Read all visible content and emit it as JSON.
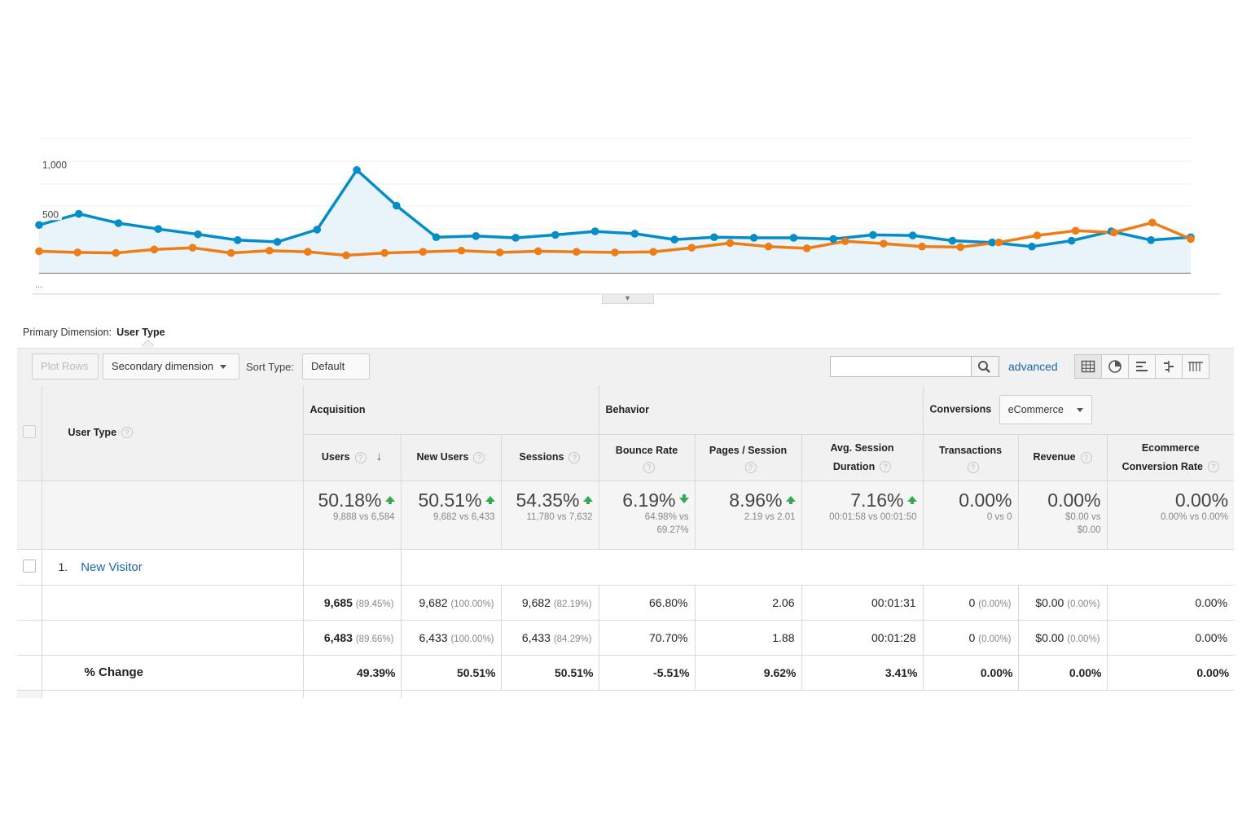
{
  "chart_data": {
    "type": "line",
    "ytick_labels": [
      "1,000",
      "500"
    ],
    "yticks": [
      1000,
      500
    ],
    "ylim": [
      0,
      1150
    ],
    "x_more_label": "...",
    "series": [
      {
        "color": "#058dc7",
        "fill": true,
        "values": [
          410,
          505,
          425,
          375,
          330,
          280,
          265,
          370,
          880,
          575,
          305,
          315,
          300,
          325,
          355,
          335,
          285,
          305,
          300,
          300,
          290,
          325,
          320,
          275,
          260,
          225,
          275,
          355,
          280,
          305
        ]
      },
      {
        "color": "#ed7e17",
        "fill": false,
        "values": [
          185,
          175,
          170,
          200,
          215,
          170,
          190,
          180,
          150,
          170,
          180,
          190,
          175,
          185,
          180,
          175,
          180,
          215,
          255,
          225,
          210,
          270,
          250,
          225,
          220,
          260,
          320,
          360,
          345,
          430,
          290
        ]
      }
    ]
  },
  "colors": {
    "blue": "#058dc7",
    "orange": "#ed7e17",
    "link": "#1a66b1",
    "green": "#34a853"
  },
  "primary_dimension": {
    "label": "Primary Dimension:",
    "value": "User Type"
  },
  "toolbar": {
    "plot_rows": "Plot Rows",
    "secondary_dimension": "Secondary dimension",
    "sort_type_label": "Sort Type:",
    "sort_type_value": "Default",
    "search_value": "",
    "advanced": "advanced",
    "view_icons": [
      "table-view-icon",
      "pie-view-icon",
      "bar-view-icon",
      "comparison-view-icon",
      "pivot-view-icon"
    ]
  },
  "table": {
    "dimension_header": "User Type",
    "groups": {
      "acquisition": "Acquisition",
      "behavior": "Behavior",
      "conversions": "Conversions",
      "conversions_select": "eCommerce"
    },
    "columns": {
      "users": "Users",
      "new_users": "New Users",
      "sessions": "Sessions",
      "bounce_rate": "Bounce Rate",
      "pages_session": "Pages / Session",
      "avg_session_1": "Avg. Session",
      "avg_session_2": "Duration",
      "transactions": "Transactions",
      "revenue": "Revenue",
      "ecom_1": "Ecommerce",
      "ecom_2": "Conversion Rate"
    },
    "summary": {
      "users": {
        "big": "50.18%",
        "small": "9,888 vs 6,584"
      },
      "new_users": {
        "big": "50.51%",
        "small": "9,682 vs 6,433"
      },
      "sessions": {
        "big": "54.35%",
        "small": "11,780 vs 7,632"
      },
      "bounce_rate": {
        "big": "6.19%",
        "small1": "64.98% vs",
        "small2": "69.27%"
      },
      "pages_session": {
        "big": "8.96%",
        "small": "2.19 vs 2.01"
      },
      "avg_session": {
        "big": "7.16%",
        "small": "00:01:58 vs 00:01:50"
      },
      "transactions": {
        "big": "0.00%",
        "small": "0 vs 0"
      },
      "revenue": {
        "big": "0.00%",
        "small1": "$0.00 vs",
        "small2": "$0.00"
      },
      "ecom": {
        "big": "0.00%",
        "small": "0.00% vs 0.00%"
      }
    },
    "row": {
      "index": "1.",
      "name": "New Visitor"
    },
    "period1": {
      "users": "9,685",
      "users_pct": "(89.45%)",
      "new_users": "9,682",
      "new_users_pct": "(100.00%)",
      "sessions": "9,682",
      "sessions_pct": "(82.19%)",
      "bounce_rate": "66.80%",
      "pages_session": "2.06",
      "avg_session": "00:01:31",
      "transactions": "0",
      "transactions_pct": "(0.00%)",
      "revenue": "$0.00",
      "revenue_pct": "(0.00%)",
      "ecom": "0.00%"
    },
    "period2": {
      "users": "6,483",
      "users_pct": "(89.66%)",
      "new_users": "6,433",
      "new_users_pct": "(100.00%)",
      "sessions": "6,433",
      "sessions_pct": "(84.29%)",
      "bounce_rate": "70.70%",
      "pages_session": "1.88",
      "avg_session": "00:01:28",
      "transactions": "0",
      "transactions_pct": "(0.00%)",
      "revenue": "$0.00",
      "revenue_pct": "(0.00%)",
      "ecom": "0.00%"
    },
    "change": {
      "label": "% Change",
      "users": "49.39%",
      "new_users": "50.51%",
      "sessions": "50.51%",
      "bounce_rate": "-5.51%",
      "pages_session": "9.62%",
      "avg_session": "3.41%",
      "transactions": "0.00%",
      "revenue": "0.00%",
      "ecom": "0.00%"
    }
  }
}
